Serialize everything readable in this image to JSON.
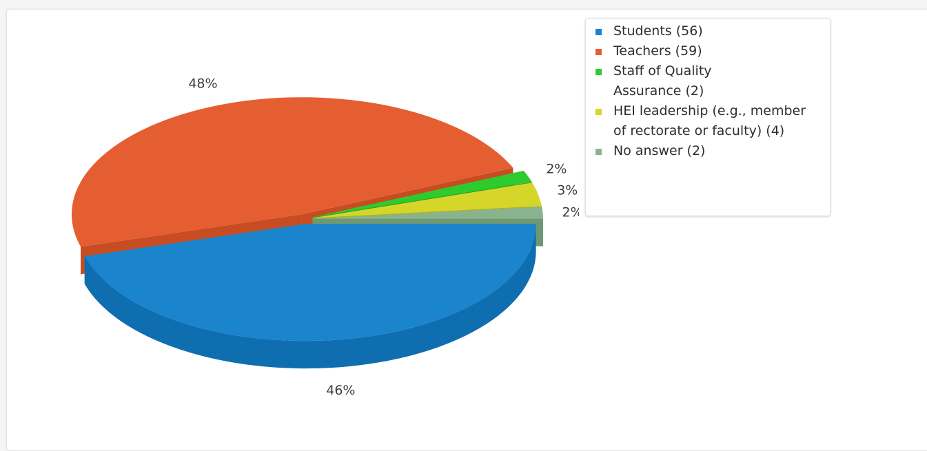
{
  "chart_data": {
    "type": "pie",
    "style": "3d",
    "categories": [
      "Students",
      "Teachers",
      "Staff of Quality Assurance",
      "HEI leadership (e.g., member of rectorate or faculty)",
      "No answer"
    ],
    "values": [
      56,
      59,
      2,
      4,
      2
    ],
    "slices": [
      {
        "legend": "Students (56)",
        "value": 56,
        "label": "46%",
        "color": "#1a84cc",
        "dark": "#0f6eb0"
      },
      {
        "legend": "Teachers (59)",
        "value": 59,
        "label": "48%",
        "color": "#e55e32",
        "dark": "#c84c22"
      },
      {
        "legend": "Staff of Quality Assurance (2)",
        "value": 2,
        "label": "2%",
        "color": "#2ecb2e",
        "dark": "#22a622"
      },
      {
        "legend": "HEI leadership (e.g., member of rectorate or faculty) (4)",
        "value": 4,
        "label": "3%",
        "color": "#d6d62a",
        "dark": "#b3b31c"
      },
      {
        "legend": "No answer (2)",
        "value": 2,
        "label": "2%",
        "color": "#88b38e",
        "dark": "#6e9874"
      }
    ],
    "legend_position": "top-right"
  }
}
